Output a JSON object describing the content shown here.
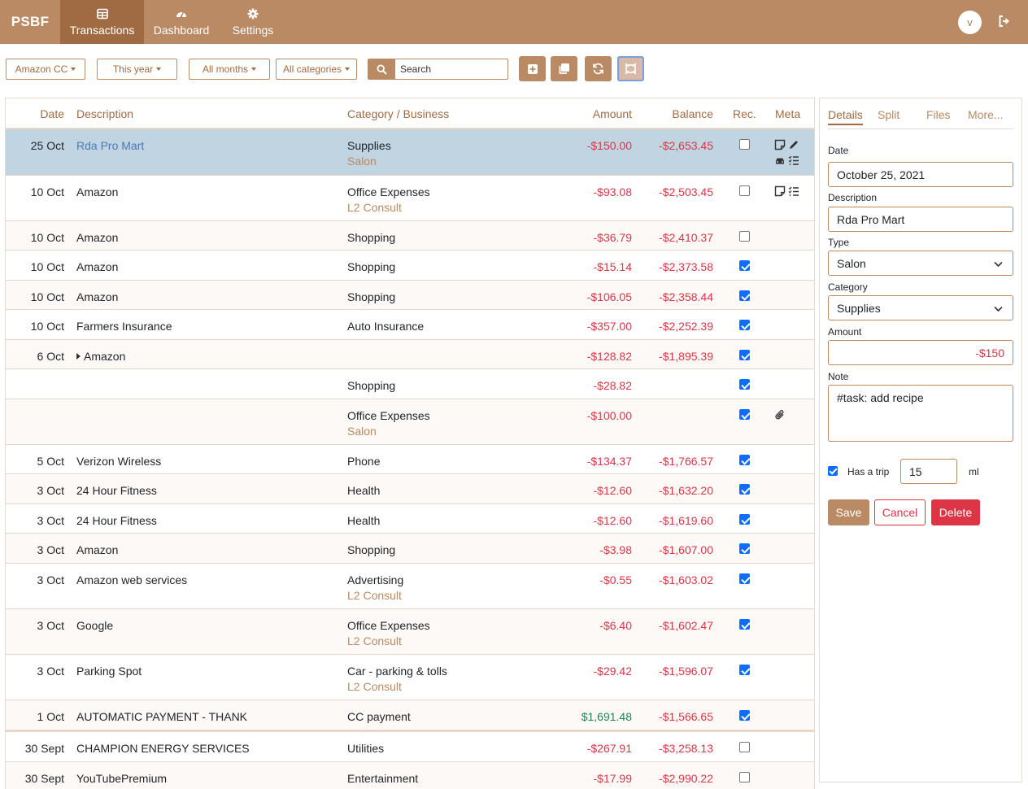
{
  "nav": {
    "brand": "PSBF",
    "items": [
      {
        "label": "Transactions",
        "icon": "table-icon",
        "active": true
      },
      {
        "label": "Dashboard",
        "icon": "gauge-icon"
      },
      {
        "label": "Settings",
        "icon": "gear-icon"
      }
    ],
    "avatar_initial": "v"
  },
  "filters": {
    "account": "Amazon CC",
    "year": "This year",
    "months": "All months",
    "categories": "All categories",
    "search_placeholder": "Search"
  },
  "table": {
    "headers": {
      "date": "Date",
      "description": "Description",
      "category": "Category / Business",
      "amount": "Amount",
      "balance": "Balance",
      "rec": "Rec.",
      "meta": "Meta"
    },
    "rows": [
      {
        "date": "25 Oct",
        "description": "Rda Pro Mart",
        "category": "Supplies",
        "business": "Salon",
        "amount": "-$150.00",
        "balance": "-$2,653.45",
        "rec": false,
        "meta": "note,edit,car,tasks"
      },
      {
        "date": "10 Oct",
        "description": "Amazon",
        "category": "Office Expenses",
        "business": "L2 Consult",
        "amount": "-$93.08",
        "balance": "-$2,503.45",
        "rec": false,
        "meta": "note,tasks"
      },
      {
        "date": "10 Oct",
        "description": "Amazon",
        "category": "Shopping",
        "business": "",
        "amount": "-$36.79",
        "balance": "-$2,410.37",
        "rec": false
      },
      {
        "date": "10 Oct",
        "description": "Amazon",
        "category": "Shopping",
        "business": "",
        "amount": "-$15.14",
        "balance": "-$2,373.58",
        "rec": true
      },
      {
        "date": "10 Oct",
        "description": "Amazon",
        "category": "Shopping",
        "business": "",
        "amount": "-$106.05",
        "balance": "-$2,358.44",
        "rec": true
      },
      {
        "date": "10 Oct",
        "description": "Farmers Insurance",
        "category": "Auto Insurance",
        "business": "",
        "amount": "-$357.00",
        "balance": "-$2,252.39",
        "rec": true
      },
      {
        "date": "6 Oct",
        "description": "Amazon",
        "category": "",
        "business": "",
        "amount": "-$128.82",
        "balance": "-$1,895.39",
        "rec": true
      },
      {
        "date": "",
        "description": "",
        "category": "Shopping",
        "business": "",
        "amount": "-$28.82",
        "balance": "",
        "rec": true
      },
      {
        "date": "",
        "description": "",
        "category": "Office Expenses",
        "business": "Salon",
        "amount": "-$100.00",
        "balance": "",
        "rec": true,
        "meta": "attachment"
      },
      {
        "date": "5 Oct",
        "description": "Verizon Wireless",
        "category": "Phone",
        "business": "",
        "amount": "-$134.37",
        "balance": "-$1,766.57",
        "rec": true
      },
      {
        "date": "3 Oct",
        "description": "24 Hour Fitness",
        "category": "Health",
        "business": "",
        "amount": "-$12.60",
        "balance": "-$1,632.20",
        "rec": true
      },
      {
        "date": "3 Oct",
        "description": "24 Hour Fitness",
        "category": "Health",
        "business": "",
        "amount": "-$12.60",
        "balance": "-$1,619.60",
        "rec": true
      },
      {
        "date": "3 Oct",
        "description": "Amazon",
        "category": "Shopping",
        "business": "",
        "amount": "-$3.98",
        "balance": "-$1,607.00",
        "rec": true
      },
      {
        "date": "3 Oct",
        "description": "Amazon web services",
        "category": "Advertising",
        "business": "L2 Consult",
        "amount": "-$0.55",
        "balance": "-$1,603.02",
        "rec": true
      },
      {
        "date": "3 Oct",
        "description": "Google",
        "category": "Office Expenses",
        "business": "L2 Consult",
        "amount": "-$6.40",
        "balance": "-$1,602.47",
        "rec": true
      },
      {
        "date": "3 Oct",
        "description": "Parking Spot",
        "category": "Car - parking & tolls",
        "business": "L2 Consult",
        "amount": "-$29.42",
        "balance": "-$1,596.07",
        "rec": true
      },
      {
        "date": "1 Oct",
        "description": "AUTOMATIC PAYMENT - THANK",
        "category": "CC payment",
        "business": "",
        "amount": "$1,691.48",
        "balance": "-$1,566.65",
        "rec": true
      },
      {
        "date": "30 Sept",
        "description": "CHAMPION ENERGY SERVICES",
        "category": "Utilities",
        "business": "",
        "amount": "-$267.91",
        "balance": "-$3,258.13",
        "rec": false
      },
      {
        "date": "30 Sept",
        "description": "YouTubePremium",
        "category": "Entertainment",
        "business": "",
        "amount": "-$17.99",
        "balance": "-$2,990.22",
        "rec": false
      }
    ]
  },
  "details": {
    "tabs": [
      "Details",
      "Split",
      "Files",
      "More..."
    ],
    "date_label": "Date",
    "date_value": "October 25, 2021",
    "description_label": "Description",
    "description_value": "Rda Pro Mart",
    "type_label": "Type",
    "type_value": "Salon",
    "category_label": "Category",
    "category_value": "Supplies",
    "amount_label": "Amount",
    "amount_value": "-$150",
    "note_label": "Note",
    "note_value": "#task: add recipe",
    "trip_label": "Has a trip",
    "trip_value": "15",
    "trip_unit": "ml",
    "save": "Save",
    "cancel": "Cancel",
    "delete": "Delete"
  },
  "colors": {
    "accent": "#b98a63",
    "accent_dark": "#a06b43",
    "negative": "#dc3545",
    "positive": "#198754",
    "selected_row": "#c0d4e2"
  }
}
